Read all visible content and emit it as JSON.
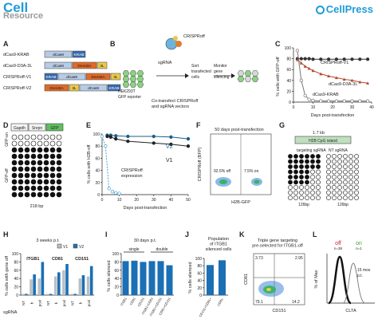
{
  "header": {
    "journal": "Cell",
    "section": "Resource",
    "publisher": "CellPress"
  },
  "panels": {
    "A": {
      "letter": "A",
      "constructs": [
        {
          "name": "dCas9-KRAB",
          "blocks": [
            "dCas9",
            "KRAB"
          ]
        },
        {
          "name": "dCas9-D3A-3L",
          "blocks": [
            "dCas9",
            "Dnmt3A",
            "3L"
          ]
        },
        {
          "name": "CRISPRoff-V1",
          "blocks": [
            "KRAB",
            "dCas9",
            "Dnmt3A",
            "3L"
          ]
        },
        {
          "name": "CRISPRoff-V2",
          "blocks": [
            "Dnmt3A",
            "3L",
            "dCas9",
            "KRAB"
          ]
        }
      ]
    },
    "B": {
      "letter": "B",
      "cell_label": "HEK293T\nGFP reporter",
      "protein": "CRISPRoff",
      "guide": "sgRNA",
      "step_sort": "Sort\ntransfected\ncells",
      "step_monitor": "Monitor\ngene\nsilencing",
      "caption": "Co-transfect CRISPRoff\nand sgRNA vectors"
    },
    "C": {
      "letter": "C",
      "ylabel": "% cells with GFP-off",
      "xlabel": "Days post-transfection",
      "series_labels": [
        "CRISPRoff-V1",
        "dCas9-D3A-3L",
        "dCas9-KRAB"
      ]
    },
    "D": {
      "letter": "D",
      "genes": [
        "Gapdh",
        "Snrpn",
        "GFP"
      ],
      "ylabel_top": "GFP-on",
      "ylabel_bottom": "GFP-off",
      "xlabel": "218 bp"
    },
    "E": {
      "letter": "E",
      "ylabel": "% cells with H2B-off",
      "xlabel": "Days post-transfection",
      "series_labels": [
        "V2",
        "V1"
      ],
      "annotation": "CRISPRoff\nexpression"
    },
    "F": {
      "letter": "F",
      "title": "50 days post-transfection",
      "ylabel": "CRISPRoff (BFP)",
      "xlabel": "H2B-GFP",
      "pct_off": "92.5% off",
      "pct_on": "7.5% on"
    },
    "G": {
      "letter": "G",
      "distance": "1.7 kb",
      "island": "H2B CpG island",
      "label_left": "targeting sgRNA",
      "label_right": "NT sgRNA",
      "bp_left": "126bp",
      "bp_right": "126bp"
    },
    "H": {
      "letter": "H",
      "title": "3 weeks p.t.",
      "legend": [
        "V1",
        "V2"
      ],
      "ylabel": "% cells with gene off",
      "genes": [
        "ITGB1",
        "CD81",
        "CD151"
      ],
      "xlabel_prefix": "sgRNA",
      "xticks": [
        "NT",
        "b",
        "pool"
      ]
    },
    "I": {
      "letter": "I",
      "title": "30 days p.t.",
      "groups": [
        "single",
        "double"
      ],
      "ylabel": "% cells silenced",
      "xticks": [
        "ITGB1",
        "CD81",
        "CD151",
        "ITGB1+CD81",
        "ITGB1+CD151",
        "CD81+CD151"
      ]
    },
    "J": {
      "letter": "J",
      "title": "Population\nof ITGB1\nsilenced cells",
      "ylabel": "% cells silenced",
      "xticks": [
        "CD151+CD81+",
        "CD81-"
      ]
    },
    "K": {
      "letter": "K",
      "title": "Triple gene targeting\npre-selected for ITGB1-off",
      "ylabel": "CD81",
      "xlabel": "CD151",
      "q_ul": "3.73",
      "q_ur": "2.95",
      "q_ll": "79.1",
      "q_lr": "14.2"
    },
    "L": {
      "letter": "L",
      "ylabel": "% of Max",
      "xlabel": "CLTA",
      "off_label": "off",
      "off_n": "n=38",
      "on_label": "on",
      "on_n": "n=1",
      "note": "15 mos\np.t."
    }
  },
  "chart_data": [
    {
      "panel": "C",
      "type": "line",
      "xlabel": "Days post-transfection",
      "ylabel": "% cells with GFP-off",
      "xlim": [
        0,
        40
      ],
      "ylim": [
        0,
        100
      ],
      "xticks": [
        0,
        10,
        20,
        30,
        40
      ],
      "yticks": [
        0,
        20,
        40,
        60,
        80,
        100
      ],
      "series": [
        {
          "name": "CRISPRoff-V1",
          "color": "#333333",
          "x": [
            2,
            4,
            6,
            8,
            10,
            14,
            18,
            22,
            26,
            30,
            34,
            38
          ],
          "y": [
            80,
            80,
            80,
            80,
            79,
            79,
            79,
            79,
            79,
            79,
            79,
            79
          ]
        },
        {
          "name": "dCas9-D3A-3L",
          "color": "#b5472a",
          "x": [
            2,
            4,
            6,
            8,
            10,
            14,
            18,
            22,
            26,
            30,
            34,
            38
          ],
          "y": [
            78,
            72,
            66,
            62,
            58,
            52,
            48,
            45,
            42,
            40,
            37,
            35
          ]
        },
        {
          "name": "dCas9-KRAB",
          "color": "#777777",
          "x": [
            2,
            4,
            6,
            8,
            10,
            14,
            18,
            22,
            26,
            30,
            34,
            38
          ],
          "y": [
            95,
            40,
            12,
            5,
            3,
            2,
            2,
            2,
            2,
            2,
            2,
            2
          ]
        }
      ]
    },
    {
      "panel": "E",
      "type": "line",
      "xlabel": "Days post-transfection",
      "ylabel": "% cells with H2B-off",
      "xlim": [
        0,
        50
      ],
      "ylim": [
        0,
        100
      ],
      "xticks": [
        0,
        10,
        20,
        30,
        40,
        50
      ],
      "yticks": [
        0,
        20,
        40,
        60,
        80,
        100
      ],
      "series": [
        {
          "name": "V2",
          "color": "#1b5e8a",
          "x": [
            3,
            5,
            8,
            15,
            30,
            40,
            50
          ],
          "y": [
            98,
            98,
            97,
            96,
            96,
            95,
            92
          ]
        },
        {
          "name": "V1",
          "color": "#222222",
          "x": [
            3,
            5,
            8,
            15,
            30,
            40,
            50
          ],
          "y": [
            96,
            95,
            92,
            88,
            85,
            83,
            80
          ]
        },
        {
          "name": "CRISPRoff expression",
          "color": "#4aa3d6",
          "x": [
            0,
            2,
            4,
            6,
            8,
            10
          ],
          "y": [
            96,
            80,
            10,
            5,
            3,
            2
          ]
        }
      ]
    },
    {
      "panel": "H",
      "type": "bar",
      "ylabel": "% cells with gene off",
      "ylim": [
        0,
        100
      ],
      "yticks": [
        0,
        20,
        40,
        60,
        80,
        100
      ],
      "categories": [
        "ITGB1 NT",
        "ITGB1 b",
        "ITGB1 pool",
        "CD81 NT",
        "CD81 b",
        "CD81 pool",
        "CD151 NT",
        "CD151 b",
        "CD151 pool"
      ],
      "series": [
        {
          "name": "V1",
          "color": "#b9bfc4",
          "values": [
            3,
            38,
            40,
            3,
            45,
            60,
            3,
            40,
            45
          ]
        },
        {
          "name": "V2",
          "color": "#1b6fb4",
          "values": [
            3,
            50,
            80,
            3,
            55,
            75,
            3,
            48,
            70
          ]
        }
      ]
    },
    {
      "panel": "I",
      "type": "bar",
      "ylabel": "% cells silenced",
      "ylim": [
        0,
        100
      ],
      "yticks": [
        0,
        20,
        40,
        60,
        80,
        100
      ],
      "categories": [
        "ITGB1",
        "CD81",
        "CD151",
        "ITGB1+CD81",
        "ITGB1+CD151",
        "CD81+CD151"
      ],
      "series": [
        {
          "name": "",
          "color": "#1b6fb4",
          "values": [
            82,
            83,
            80,
            82,
            82,
            72
          ]
        }
      ]
    },
    {
      "panel": "J",
      "type": "bar",
      "ylabel": "% cells silenced",
      "ylim": [
        0,
        100
      ],
      "yticks": [
        0,
        20,
        40,
        60,
        80,
        100
      ],
      "categories": [
        "CD151+CD81+",
        "CD81-"
      ],
      "series": [
        {
          "name": "",
          "color": "#1b6fb4",
          "values": [
            82,
            95
          ]
        }
      ]
    }
  ],
  "colors": {
    "brand": "#1e9cd7",
    "v2": "#1b6fb4",
    "v1": "#b9bfc4",
    "red": "#d8262b",
    "green": "#3aa935"
  }
}
